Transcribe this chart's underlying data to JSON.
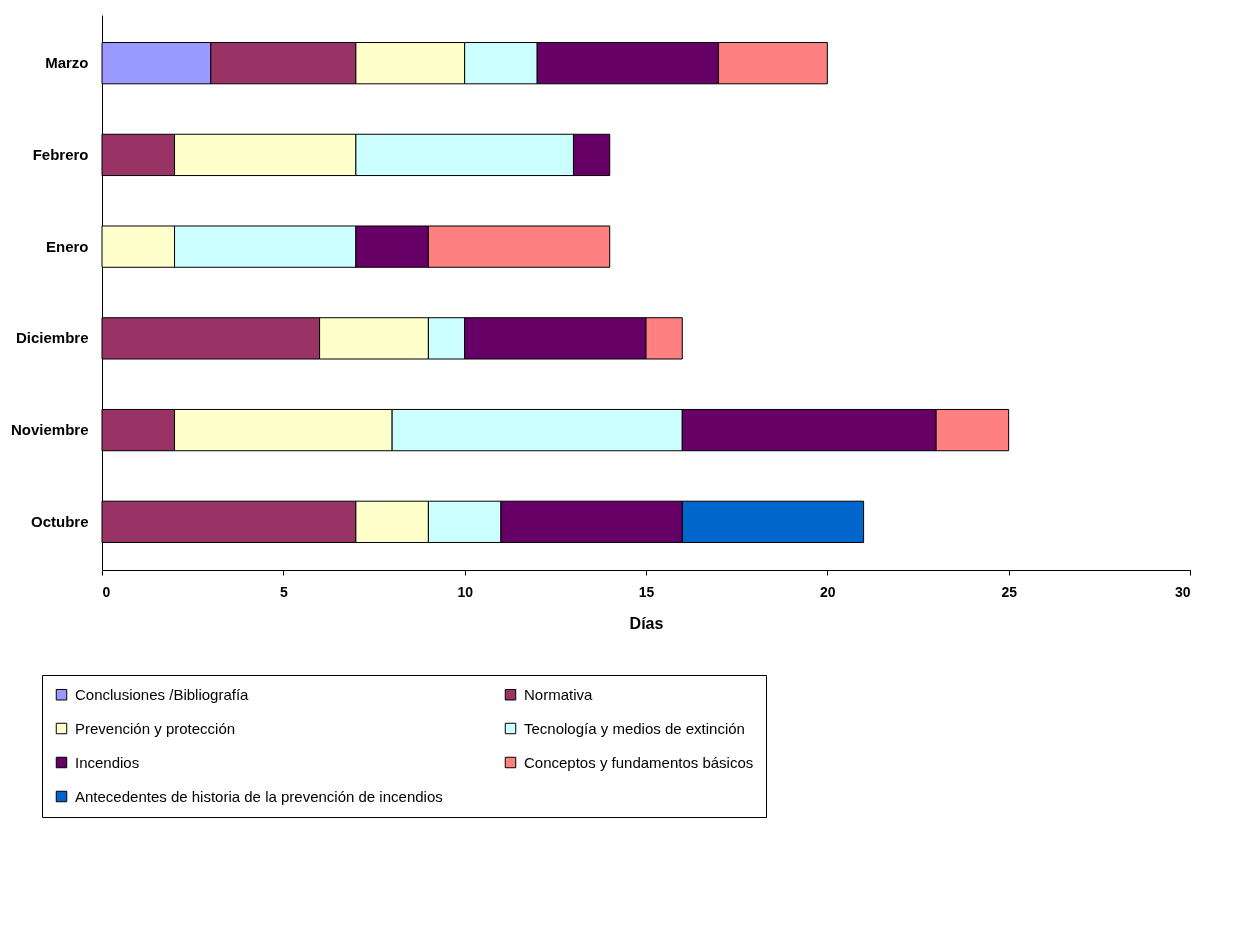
{
  "chart_data": {
    "type": "bar",
    "orientation": "horizontal",
    "stacked": true,
    "xlabel": "Días",
    "categories": [
      "Marzo",
      "Febrero",
      "Enero",
      "Diciembre",
      "Noviembre",
      "Octubre"
    ],
    "xlim": [
      0,
      30
    ],
    "xticks": [
      0,
      5,
      10,
      15,
      20,
      25,
      30
    ],
    "grid": false,
    "legend": "bottom",
    "series": [
      {
        "name": "Conclusiones /Bibliografía",
        "color": "#9999ff",
        "values": [
          3,
          null,
          null,
          null,
          null,
          null
        ]
      },
      {
        "name": "Normativa",
        "color": "#993366",
        "values": [
          4,
          2,
          null,
          6,
          2,
          7
        ]
      },
      {
        "name": "Prevención y protección",
        "color": "#ffffcc",
        "values": [
          3,
          5,
          2,
          3,
          6,
          2
        ]
      },
      {
        "name": "Tecnología y medios de extinción",
        "color": "#ccffff",
        "values": [
          2,
          6,
          5,
          1,
          8,
          2
        ]
      },
      {
        "name": "Incendios",
        "color": "#660066",
        "values": [
          5,
          1,
          2,
          5,
          7,
          5
        ]
      },
      {
        "name": "Conceptos y fundamentos básicos",
        "color": "#ff8080",
        "values": [
          3,
          null,
          5,
          1,
          2,
          null
        ]
      },
      {
        "name": "Antecedentes de historia de la prevención de incendios",
        "color": "#0066cc",
        "values": [
          null,
          null,
          null,
          null,
          null,
          5
        ]
      }
    ]
  }
}
